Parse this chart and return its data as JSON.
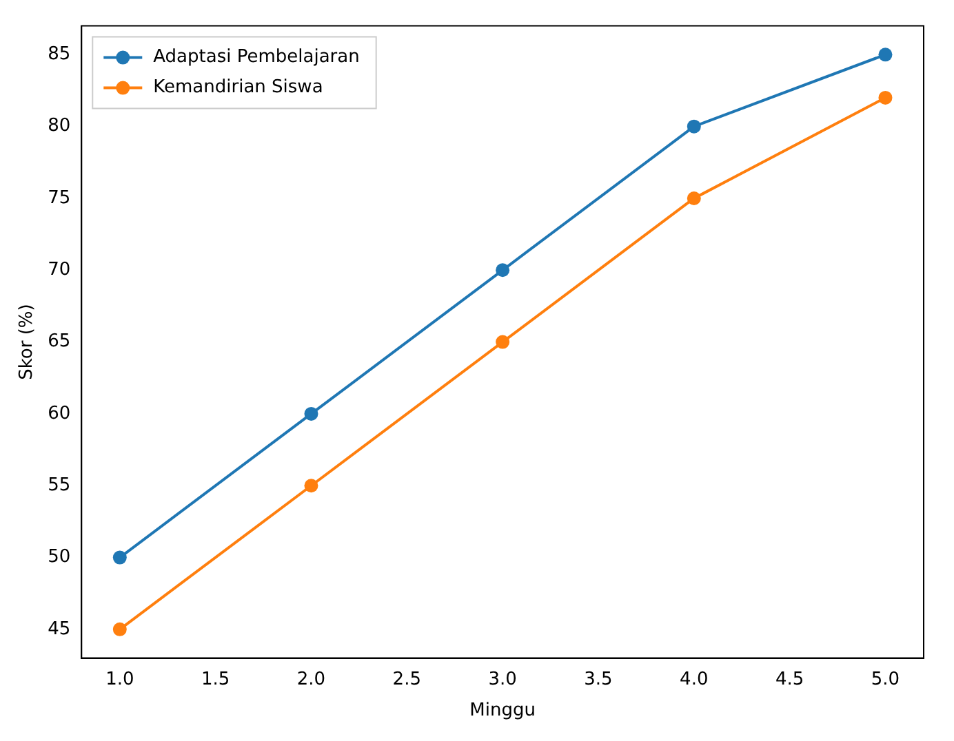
{
  "chart_data": {
    "type": "line",
    "xlabel": "Minggu",
    "ylabel": "Skor (%)",
    "x": [
      1,
      2,
      3,
      4,
      5
    ],
    "series": [
      {
        "name": "Adaptasi Pembelajaran",
        "color": "#1f77b4",
        "values": [
          50,
          60,
          70,
          80,
          85
        ]
      },
      {
        "name": "Kemandirian Siswa",
        "color": "#ff7f0e",
        "values": [
          45,
          55,
          65,
          75,
          82
        ]
      }
    ],
    "xlim": [
      0.8,
      5.2
    ],
    "xticks": [
      {
        "value": 1,
        "label": "1.0"
      },
      {
        "value": 1.5,
        "label": "1.5"
      },
      {
        "value": 2,
        "label": "2.0"
      },
      {
        "value": 2.5,
        "label": "2.5"
      },
      {
        "value": 3,
        "label": "3.0"
      },
      {
        "value": 3.5,
        "label": "3.5"
      },
      {
        "value": 4,
        "label": "4.0"
      },
      {
        "value": 4.5,
        "label": "4.5"
      },
      {
        "value": 5,
        "label": "5.0"
      }
    ],
    "ylim": [
      43,
      87
    ],
    "yticks": [
      45,
      50,
      55,
      60,
      65,
      70,
      75,
      80,
      85
    ],
    "legend": "top left",
    "marker": "circle",
    "line_style": "solid",
    "grid": false
  }
}
